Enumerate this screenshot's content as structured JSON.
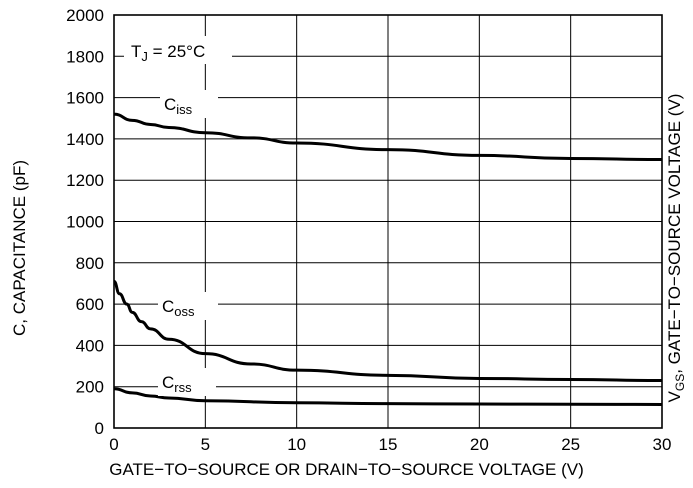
{
  "chart_data": {
    "type": "line",
    "xlabel": "GATE−TO−SOURCE OR DRAIN−TO−SOURCE VOLTAGE (V)",
    "ylabel": "C, CAPACITANCE (pF)",
    "ylabel_right": "VGS, GATE−TO−SOURCE VOLTAGE (V)",
    "ylabel_right_main": "V",
    "ylabel_right_sub": "GS",
    "ylabel_right_rest": ", GATE−TO−SOURCE VOLTAGE (V)",
    "xlim": [
      0,
      30
    ],
    "ylim": [
      0,
      2000
    ],
    "x_ticks": [
      "0",
      "5",
      "10",
      "15",
      "20",
      "25",
      "30"
    ],
    "y_ticks": [
      "0",
      "200",
      "400",
      "600",
      "800",
      "1000",
      "1200",
      "1400",
      "1600",
      "1800",
      "2000"
    ],
    "grid": true,
    "annotation": {
      "main": "T",
      "sub": "J",
      "rest": " = 25°C"
    },
    "series": [
      {
        "name": "Ciss",
        "label_main": "C",
        "label_sub": "iss",
        "x": [
          0,
          1,
          2,
          3,
          5,
          7.5,
          10,
          15,
          20,
          25,
          30
        ],
        "y": [
          1520,
          1490,
          1470,
          1455,
          1430,
          1405,
          1380,
          1348,
          1320,
          1305,
          1300
        ]
      },
      {
        "name": "Coss",
        "label_main": "C",
        "label_sub": "oss",
        "x": [
          0,
          0.3,
          0.7,
          1,
          1.5,
          2,
          3,
          5,
          7.5,
          10,
          15,
          20,
          25,
          30
        ],
        "y": [
          710,
          650,
          600,
          560,
          515,
          480,
          430,
          360,
          310,
          280,
          255,
          240,
          235,
          230
        ]
      },
      {
        "name": "Crss",
        "label_main": "C",
        "label_sub": "rss",
        "x": [
          0,
          1,
          2,
          3,
          5,
          10,
          15,
          20,
          25,
          30
        ],
        "y": [
          190,
          170,
          155,
          145,
          132,
          122,
          118,
          116,
          115,
          114
        ]
      }
    ]
  }
}
